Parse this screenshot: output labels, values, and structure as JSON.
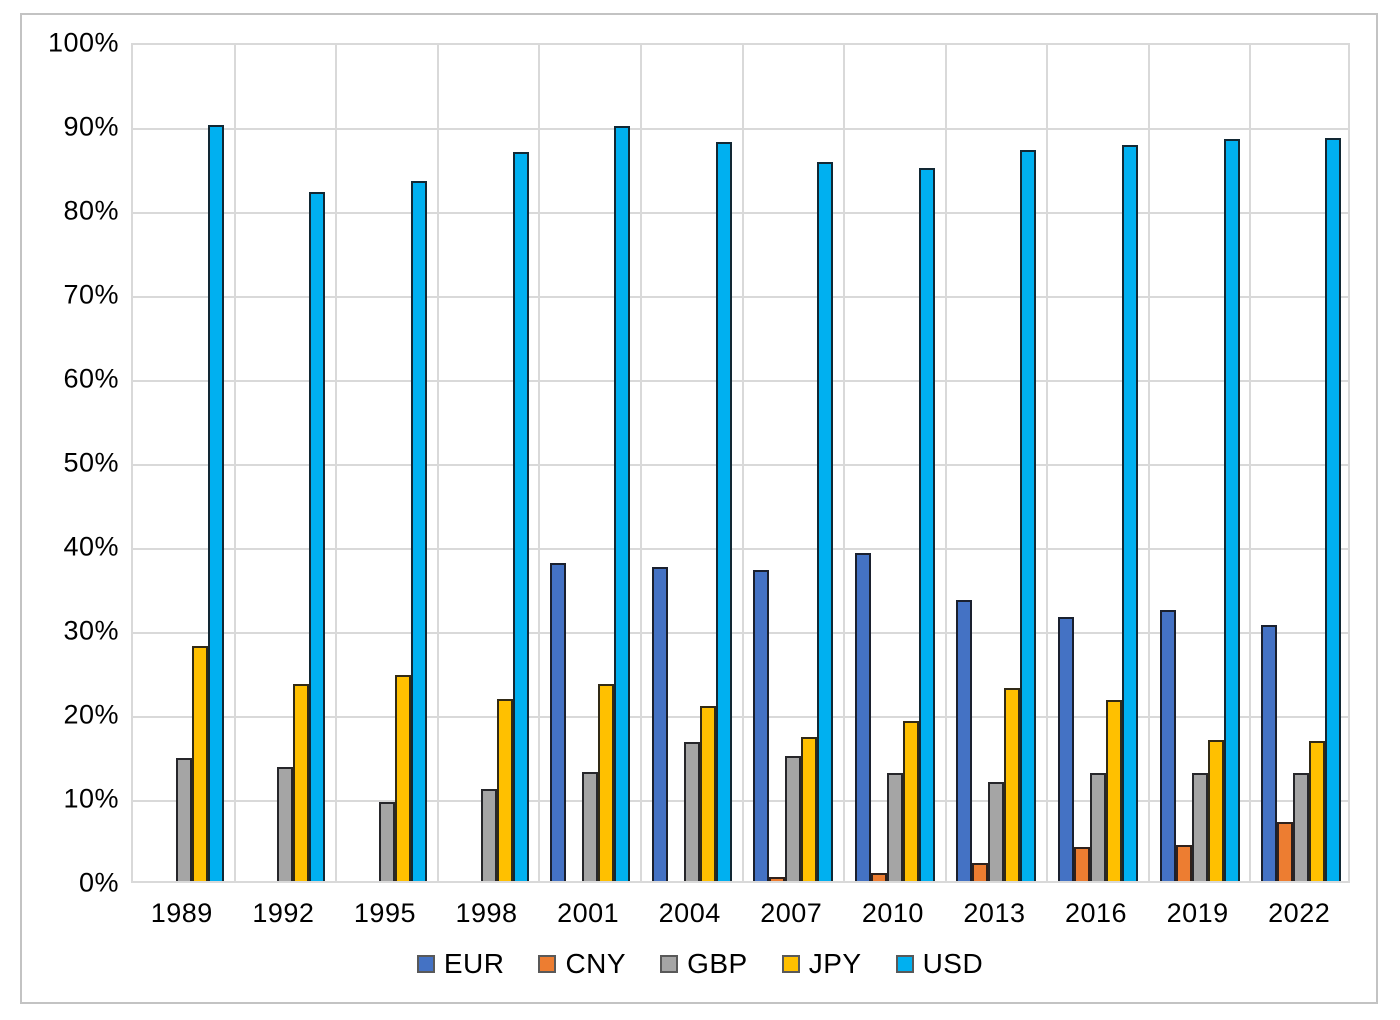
{
  "chart_data": {
    "type": "bar",
    "title": "",
    "xlabel": "",
    "ylabel": "",
    "ylim": [
      0,
      100
    ],
    "grid": true,
    "legend_position": "bottom",
    "y_ticks": [
      {
        "label": "100%",
        "value": 100
      },
      {
        "label": "90%",
        "value": 90
      },
      {
        "label": "80%",
        "value": 80
      },
      {
        "label": "70%",
        "value": 70
      },
      {
        "label": "60%",
        "value": 60
      },
      {
        "label": "50%",
        "value": 50
      },
      {
        "label": "40%",
        "value": 40
      },
      {
        "label": "30%",
        "value": 30
      },
      {
        "label": "20%",
        "value": 20
      },
      {
        "label": "10%",
        "value": 10
      },
      {
        "label": "0%",
        "value": 0
      }
    ],
    "categories": [
      "1989",
      "1992",
      "1995",
      "1998",
      "2001",
      "2004",
      "2007",
      "2010",
      "2013",
      "2016",
      "2019",
      "2022"
    ],
    "series": [
      {
        "name": "EUR",
        "color": "#4472C4",
        "values": [
          null,
          null,
          null,
          null,
          37.9,
          37.4,
          37.0,
          39.1,
          33.4,
          31.4,
          32.3,
          30.5
        ]
      },
      {
        "name": "CNY",
        "color": "#ED7D31",
        "values": [
          null,
          null,
          null,
          null,
          null,
          null,
          0.5,
          0.9,
          2.2,
          4.0,
          4.3,
          7.0
        ]
      },
      {
        "name": "GBP",
        "color": "#A5A5A5",
        "values": [
          14.6,
          13.6,
          9.4,
          11.0,
          13.0,
          16.5,
          14.9,
          12.9,
          11.8,
          12.8,
          12.8,
          12.9
        ]
      },
      {
        "name": "JPY",
        "color": "#FFC000",
        "values": [
          28.0,
          23.4,
          24.5,
          21.7,
          23.5,
          20.8,
          17.2,
          19.0,
          23.0,
          21.6,
          16.8,
          16.7
        ]
      },
      {
        "name": "USD",
        "color": "#00B0F0",
        "values": [
          90.0,
          82.0,
          83.3,
          86.8,
          89.9,
          88.0,
          85.6,
          84.9,
          87.0,
          87.6,
          88.3,
          88.5
        ]
      }
    ]
  }
}
